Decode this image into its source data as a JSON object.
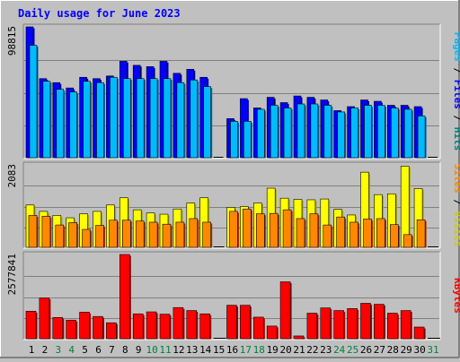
{
  "chart_data": [
    {
      "type": "bar",
      "title": "Daily usage for June 2023",
      "categories": [
        "1",
        "2",
        "3",
        "4",
        "5",
        "6",
        "7",
        "8",
        "9",
        "10",
        "11",
        "12",
        "13",
        "14",
        "15",
        "16",
        "17",
        "18",
        "19",
        "20",
        "21",
        "22",
        "23",
        "24",
        "25",
        "26",
        "27",
        "28",
        "29",
        "30",
        "31"
      ],
      "weekend_days": [
        "3",
        "4",
        "10",
        "11",
        "17",
        "18",
        "24",
        "25",
        "31"
      ],
      "ylabel": "Pages / Files / Hits",
      "y_tick_label": "98815",
      "ylim": [
        0,
        98815
      ],
      "grid": true,
      "series": [
        {
          "name": "Hits",
          "color": "#0000ff",
          "values": [
            98815,
            60000,
            57000,
            53000,
            61000,
            60000,
            62000,
            73000,
            70000,
            69000,
            73000,
            64000,
            67000,
            61000,
            0,
            30000,
            45000,
            38000,
            46000,
            42000,
            47000,
            46000,
            44000,
            36000,
            39000,
            44000,
            43000,
            40000,
            40000,
            39000,
            0
          ]
        },
        {
          "name": "Files",
          "color": "#00bbff",
          "values": [
            85000,
            58000,
            52000,
            50000,
            58000,
            57000,
            61000,
            60000,
            60000,
            60000,
            60000,
            57000,
            59000,
            54000,
            0,
            28000,
            28000,
            37000,
            40000,
            38000,
            41000,
            41000,
            40000,
            35000,
            38000,
            40000,
            40000,
            38000,
            37000,
            32000,
            0
          ]
        },
        {
          "name": "Pages",
          "color": "#00bbff",
          "values": [
            0,
            0,
            0,
            0,
            0,
            0,
            0,
            0,
            0,
            0,
            0,
            0,
            0,
            0,
            0,
            0,
            0,
            0,
            0,
            0,
            0,
            0,
            0,
            0,
            0,
            0,
            0,
            0,
            0,
            0,
            0
          ]
        }
      ]
    },
    {
      "type": "bar",
      "categories": [
        "1",
        "2",
        "3",
        "4",
        "5",
        "6",
        "7",
        "8",
        "9",
        "10",
        "11",
        "12",
        "13",
        "14",
        "15",
        "16",
        "17",
        "18",
        "19",
        "20",
        "21",
        "22",
        "23",
        "24",
        "25",
        "26",
        "27",
        "28",
        "29",
        "30",
        "31"
      ],
      "ylabel": "Sites / Visits",
      "y_tick_label": "2083",
      "ylim": [
        0,
        2083
      ],
      "grid": true,
      "series": [
        {
          "name": "Visits",
          "color": "#ffff00",
          "values": [
            1080,
            920,
            820,
            760,
            860,
            920,
            1080,
            1260,
            960,
            880,
            850,
            980,
            1130,
            1260,
            0,
            1020,
            1040,
            1130,
            1500,
            1250,
            1220,
            1210,
            1230,
            970,
            830,
            1900,
            1340,
            1360,
            2050,
            1490,
            0
          ]
        },
        {
          "name": "Sites",
          "color": "#ff8800",
          "values": [
            820,
            800,
            580,
            640,
            470,
            570,
            700,
            700,
            680,
            650,
            600,
            650,
            740,
            650,
            0,
            920,
            980,
            860,
            870,
            960,
            740,
            860,
            580,
            780,
            650,
            730,
            740,
            590,
            340,
            710,
            0
          ]
        }
      ]
    },
    {
      "type": "bar",
      "categories": [
        "1",
        "2",
        "3",
        "4",
        "5",
        "6",
        "7",
        "8",
        "9",
        "10",
        "11",
        "12",
        "13",
        "14",
        "15",
        "16",
        "17",
        "18",
        "19",
        "20",
        "21",
        "22",
        "23",
        "24",
        "25",
        "26",
        "27",
        "28",
        "29",
        "30",
        "31"
      ],
      "ylabel": "KBytes",
      "y_tick_label": "2577841",
      "ylim": [
        0,
        2577841
      ],
      "grid": true,
      "series": [
        {
          "name": "KBytes",
          "color": "#ff0000",
          "values": [
            860000,
            1260000,
            670000,
            590000,
            830000,
            700000,
            510000,
            2577841,
            780000,
            840000,
            770000,
            970000,
            880000,
            780000,
            0,
            1040000,
            1040000,
            680000,
            410000,
            1750000,
            110000,
            800000,
            960000,
            880000,
            940000,
            1100000,
            1070000,
            800000,
            880000,
            380000,
            0
          ]
        }
      ]
    }
  ]
}
